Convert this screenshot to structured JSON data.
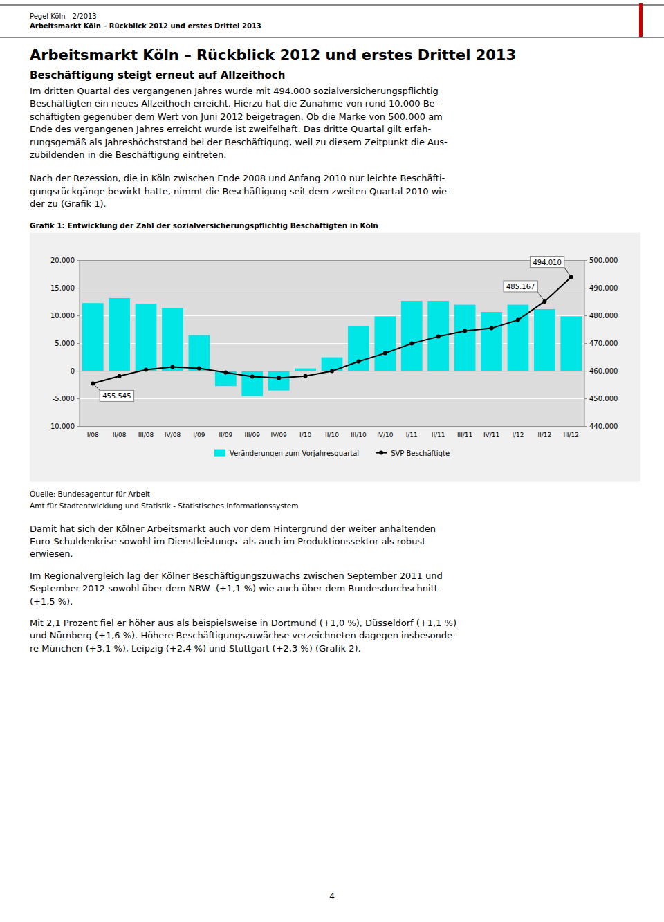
{
  "header": [
    "Pegel Köln - 2/2013",
    "Arbeitsmarkt Köln – Rückblick 2012 und erstes Drittel 2013"
  ],
  "title": "Arbeitsmarkt Köln – Rückblick 2012 und erstes Drittel 2013",
  "subtitle": "Beschäftigung steigt erneut auf Allzeithoch",
  "paragraphs": [
    [
      "Im dritten Quartal des vergangenen Jahres wurde mit 494.000 sozialversicherungspflichtig",
      "Beschäftigten ein neues Allzeithoch erreicht. Hierzu hat die Zunahme von rund 10.000 Be-",
      "schäftigten gegenüber dem Wert von Juni 2012 beigetragen. Ob die Marke von 500.000 am",
      "Ende des vergangenen Jahres erreicht wurde ist zweifelhaft. Das dritte Quartal gilt erfah-",
      "rungsgemäß als Jahreshöchststand bei der Beschäftigung, weil zu diesem Zeitpunkt die Aus-",
      "zubildenden in die Beschäftigung eintreten."
    ],
    [
      "Nach der Rezession, die in Köln zwischen Ende 2008 und Anfang 2010 nur leichte Beschäfti-",
      "gungsrückgänge bewirkt hatte, nimmt die Beschäftigung seit dem zweiten Quartal 2010 wie-",
      "der zu (Grafik 1)."
    ],
    [
      "Damit hat sich der Kölner Arbeitsmarkt auch vor dem Hintergrund der weiter anhaltenden",
      "Euro-Schuldenkrise sowohl im Dienstleistungs- als auch im Produktionssektor als robust",
      "erwiesen."
    ],
    [
      "Im Regionalvergleich lag der Kölner Beschäftigungszuwachs zwischen September 2011 und",
      "September 2012 sowohl über dem NRW- (+1,1 %) wie auch über dem Bundesdurchschnitt",
      "(+1,5 %)."
    ],
    [
      "Mit 2,1 Prozent fiel er höher aus als beispielsweise in Dortmund (+1,0 %), Düsseldorf (+1,1 %)",
      "und Nürnberg (+1,6 %). Höhere Beschäftigungszuwächse verzeichneten dagegen insbesonde-",
      "re München (+3,1 %), Leipzig (+2,4 %) und Stuttgart (+2,3 %) (Grafik 2)."
    ]
  ],
  "source": [
    "Quelle: Bundesagentur für Arbeit",
    "Amt für Stadtentwicklung und Statistik - Statistisches Informationssystem"
  ],
  "page_number": "4",
  "chart_data": {
    "type": "bar",
    "title": "Grafik 1: Entwicklung der Zahl der sozialversicherungspflichtig Beschäftigten in Köln",
    "categories": [
      "I/08",
      "II/08",
      "III/08",
      "IV/08",
      "I/09",
      "II/09",
      "III/09",
      "IV/09",
      "I/10",
      "II/10",
      "III/10",
      "IV/10",
      "I/11",
      "II/11",
      "III/11",
      "IV/11",
      "I/12",
      "II/12",
      "III/12"
    ],
    "series": [
      {
        "name": "Veränderungen zum Vorjahresquartal",
        "type": "bar",
        "color": "#00e5e5",
        "values": [
          12300,
          13200,
          12200,
          11400,
          6500,
          -2700,
          -4500,
          -3500,
          500,
          2500,
          8100,
          9900,
          12700,
          12700,
          12000,
          10700,
          12000,
          11200,
          9900
        ]
      },
      {
        "name": "SVP-Beschäftigte",
        "type": "line",
        "axis": "y2",
        "color": "#000000",
        "marker": "circle",
        "line_style": "solid",
        "values": [
          455545,
          458200,
          460500,
          461500,
          461000,
          459500,
          458000,
          457500,
          458200,
          460000,
          463500,
          466500,
          470000,
          472500,
          474500,
          475500,
          478500,
          485167,
          494010
        ]
      }
    ],
    "ylim": [
      -10000,
      20000
    ],
    "yticks": [
      {
        "value": -10000,
        "label": "-10.000"
      },
      {
        "value": -5000,
        "label": "-5.000"
      },
      0,
      {
        "value": 5000,
        "label": "5.000"
      },
      {
        "value": 10000,
        "label": "10.000"
      },
      {
        "value": 15000,
        "label": "15.000"
      },
      {
        "value": 20000,
        "label": "20.000"
      }
    ],
    "y2lim": [
      440000,
      500000
    ],
    "y2ticks": [
      {
        "value": 440000,
        "label": "440.000"
      },
      {
        "value": 450000,
        "label": "450.000"
      },
      {
        "value": 460000,
        "label": "460.000"
      },
      {
        "value": 470000,
        "label": "470.000"
      },
      {
        "value": 480000,
        "label": "480.000"
      },
      {
        "value": 490000,
        "label": "490.000"
      },
      {
        "value": 500000,
        "label": "500.000"
      }
    ],
    "annotations": [
      {
        "text": "455.545",
        "x": "I/08",
        "y": 455545,
        "axis": "y2"
      },
      {
        "text": "485.167",
        "x": "II/12",
        "y": 485167,
        "axis": "y2"
      },
      {
        "text": "494.010",
        "x": "III/12",
        "y": 494010,
        "axis": "y2"
      }
    ],
    "grid": true,
    "legend": "bottom"
  }
}
